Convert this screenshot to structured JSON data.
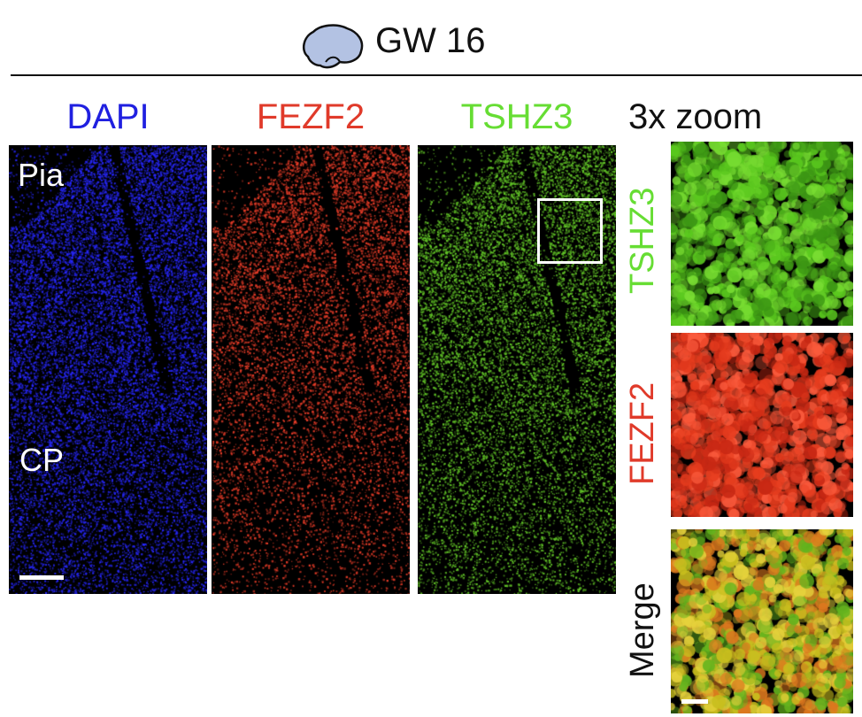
{
  "header": {
    "title": "GW 16",
    "icon": "brain-icon",
    "icon_color": "#b3c2e3"
  },
  "columns": [
    {
      "label": "DAPI",
      "color": "#2020e0"
    },
    {
      "label": "FEZF2",
      "color": "#e03a2a"
    },
    {
      "label": "TSHZ3",
      "color": "#66dd33"
    },
    {
      "label": "3x zoom",
      "color": "#111111"
    }
  ],
  "panel_annotations": {
    "top_label": "Pia",
    "middle_label": "CP"
  },
  "zoom_rows": [
    {
      "label": "TSHZ3",
      "color": "#66dd33"
    },
    {
      "label": "FEZF2",
      "color": "#e03a2a"
    },
    {
      "label": "Merge",
      "color": "#111111"
    }
  ]
}
